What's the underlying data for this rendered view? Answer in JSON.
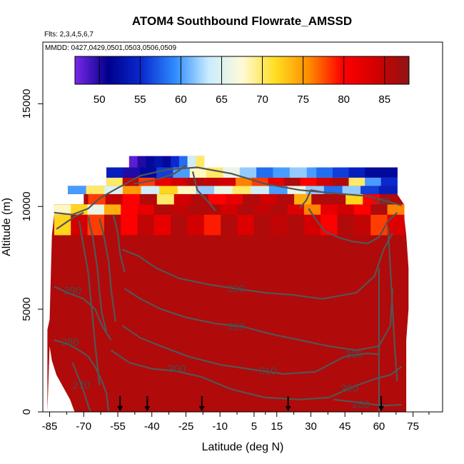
{
  "chart_data": {
    "type": "heatmap",
    "title": "ATOM4 Southbound Flowrate_AMSSD",
    "flights_note": "Flts: 2,3,4,5,6,7",
    "dates_note": "MMDD: 0427,0429,0501,0503,0506,0509",
    "xlabel": "Latitude (deg N)",
    "ylabel": "Altitude (m)",
    "xlim": [
      -88,
      88
    ],
    "ylim": [
      0,
      18000
    ],
    "x_ticks": [
      -85,
      -70,
      -55,
      -40,
      -25,
      -10,
      5,
      15,
      30,
      45,
      60,
      75
    ],
    "y_ticks": [
      0,
      5000,
      10000,
      15000
    ],
    "y_tick_labels": [
      "0",
      "5000",
      "10000",
      "15000"
    ],
    "colorbar": {
      "min": 47,
      "max": 88,
      "ticks": [
        50,
        55,
        60,
        65,
        70,
        75,
        80,
        85
      ],
      "colors": [
        "#7a28e8",
        "#00008c",
        "#0a2ad0",
        "#2e8cff",
        "#c8ecff",
        "#fffad8",
        "#ffde20",
        "#ff8c00",
        "#ff0000",
        "#d40000",
        "#8e1414"
      ]
    },
    "background_value": 86,
    "upper_bands": [
      {
        "x0": -83,
        "x1": 71,
        "y0": 8600,
        "y1": 9600,
        "values": [
          72,
          84,
          78,
          86,
          80,
          85,
          82,
          86,
          84,
          79,
          86,
          83,
          86,
          85,
          86,
          84,
          80,
          86,
          85,
          78,
          83
        ]
      },
      {
        "x0": -83,
        "x1": 71,
        "y0": 9600,
        "y1": 10100,
        "values": [
          68,
          72,
          66,
          74,
          80,
          82,
          86,
          85,
          86,
          86,
          84,
          86,
          85,
          86,
          83,
          76,
          82,
          84,
          80,
          86,
          76
        ]
      },
      {
        "x0": -68,
        "x1": 68,
        "y0": 10100,
        "y1": 10600,
        "values": [
          78,
          85,
          80,
          86,
          70,
          84,
          86,
          80,
          82,
          86,
          84,
          86,
          74,
          86,
          86,
          72,
          80,
          86
        ]
      },
      {
        "x0": -77,
        "x1": 68,
        "y0": 10600,
        "y1": 11000,
        "values": [
          60,
          70,
          65,
          75,
          64,
          72,
          68,
          62,
          66,
          70,
          64,
          60,
          66,
          62,
          58,
          62,
          56,
          54
        ]
      },
      {
        "x0": -60,
        "x1": 68,
        "y0": 11000,
        "y1": 11400,
        "values": [
          70,
          85,
          78,
          82,
          84,
          86,
          85,
          84,
          76,
          78,
          82,
          86,
          80,
          84,
          86,
          70,
          60,
          55
        ]
      },
      {
        "x0": -60,
        "x1": 68,
        "y0": 11400,
        "y1": 11900,
        "values": [
          56,
          52,
          60,
          55,
          62,
          66,
          72,
          64,
          60,
          58,
          62,
          64,
          60,
          58,
          56,
          54,
          52,
          52
        ]
      },
      {
        "x0": -60,
        "x1": 28,
        "y0": 11400,
        "y1": 11900,
        "values": [
          54,
          50,
          52,
          56,
          60,
          68,
          70,
          66,
          62,
          58,
          60,
          62
        ]
      },
      {
        "x0": -50,
        "x1": -17,
        "y0": 11900,
        "y1": 12450,
        "values": [
          48,
          50,
          52,
          53,
          52,
          55,
          58,
          64,
          70
        ]
      }
    ],
    "contour_labels": [
      {
        "text": "340",
        "x": 61,
        "y": 10250
      },
      {
        "text": "330",
        "x": -3,
        "y": 6000
      },
      {
        "text": "320",
        "x": -3,
        "y": 4150
      },
      {
        "text": "310",
        "x": 11,
        "y": 2000
      },
      {
        "text": "300",
        "x": -29,
        "y": 2100
      },
      {
        "text": "300",
        "x": 49,
        "y": 2800
      },
      {
        "text": "290",
        "x": -75,
        "y": 5900
      },
      {
        "text": "290",
        "x": 47,
        "y": 1150
      },
      {
        "text": "280",
        "x": -76,
        "y": 3400
      },
      {
        "text": "280",
        "x": 52,
        "y": 370
      },
      {
        "text": "270",
        "x": -71,
        "y": 1300
      }
    ],
    "contours": [
      [
        [
          -83,
          9700
        ],
        [
          -75,
          9600
        ],
        [
          -68,
          9900
        ],
        [
          -63,
          10400
        ],
        [
          -55,
          10900
        ],
        [
          -45,
          11500
        ],
        [
          -33,
          11800
        ],
        [
          -20,
          11900
        ],
        [
          -5,
          11600
        ],
        [
          10,
          11100
        ],
        [
          25,
          10800
        ],
        [
          35,
          10700
        ],
        [
          45,
          10600
        ],
        [
          55,
          10500
        ],
        [
          62,
          10300
        ],
        [
          70,
          10050
        ]
      ],
      [
        [
          -48,
          11100
        ],
        [
          -38,
          11300
        ],
        [
          -30,
          11600
        ],
        [
          -25,
          12000
        ]
      ],
      [
        [
          -22,
          11700
        ],
        [
          -20,
          10800
        ],
        [
          -15,
          10200
        ],
        [
          -12,
          9800
        ]
      ],
      [
        [
          25,
          9900
        ],
        [
          28,
          10300
        ],
        [
          30,
          10800
        ],
        [
          35,
          10700
        ]
      ],
      [
        [
          -53,
          7900
        ],
        [
          -46,
          7600
        ],
        [
          -38,
          7000
        ],
        [
          -28,
          6500
        ],
        [
          -15,
          6200
        ],
        [
          -3,
          6000
        ],
        [
          10,
          5800
        ],
        [
          22,
          5700
        ],
        [
          35,
          5500
        ],
        [
          50,
          5800
        ],
        [
          58,
          6600
        ],
        [
          62,
          7900
        ],
        [
          66,
          8700
        ]
      ],
      [
        [
          -52,
          6000
        ],
        [
          -45,
          5500
        ],
        [
          -36,
          5000
        ],
        [
          -25,
          4600
        ],
        [
          -12,
          4300
        ],
        [
          0,
          4150
        ],
        [
          12,
          3800
        ],
        [
          25,
          3500
        ],
        [
          38,
          3200
        ],
        [
          50,
          3000
        ],
        [
          60,
          3200
        ],
        [
          65,
          4200
        ],
        [
          66,
          6000
        ]
      ],
      [
        [
          -53,
          4200
        ],
        [
          -45,
          3600
        ],
        [
          -36,
          3200
        ],
        [
          -24,
          2700
        ],
        [
          -10,
          2300
        ],
        [
          5,
          2050
        ],
        [
          18,
          1850
        ],
        [
          32,
          1950
        ],
        [
          45,
          2700
        ],
        [
          55,
          2850
        ],
        [
          60,
          2800
        ]
      ],
      [
        [
          -58,
          3000
        ],
        [
          -50,
          2400
        ],
        [
          -40,
          2100
        ],
        [
          -30,
          2000
        ],
        [
          -18,
          1700
        ],
        [
          -5,
          1100
        ],
        [
          10,
          700
        ],
        [
          25,
          600
        ],
        [
          38,
          700
        ],
        [
          48,
          1200
        ],
        [
          58,
          1600
        ],
        [
          65,
          1800
        ],
        [
          70,
          2200
        ]
      ],
      [
        [
          -83,
          6100
        ],
        [
          -77,
          5800
        ],
        [
          -70,
          5500
        ],
        [
          -65,
          5000
        ],
        [
          -62,
          4200
        ],
        [
          -58,
          3500
        ]
      ],
      [
        [
          -83,
          3500
        ],
        [
          -77,
          3300
        ],
        [
          -72,
          3000
        ],
        [
          -68,
          2700
        ],
        [
          -65,
          2200
        ],
        [
          -62,
          1500
        ],
        [
          -60,
          900
        ],
        [
          -59,
          0
        ]
      ],
      [
        [
          -75,
          2400
        ],
        [
          -72,
          1600
        ],
        [
          -70,
          1000
        ],
        [
          -68,
          300
        ],
        [
          -67,
          0
        ]
      ],
      [
        [
          -72,
          9300
        ],
        [
          -70,
          8000
        ],
        [
          -68,
          6800
        ],
        [
          -67,
          5600
        ],
        [
          -66,
          4500
        ],
        [
          -65,
          3300
        ],
        [
          -64,
          2300
        ],
        [
          -63,
          1300
        ]
      ],
      [
        [
          -68,
          9500
        ],
        [
          -66,
          8500
        ],
        [
          -64,
          7000
        ],
        [
          -63,
          5800
        ],
        [
          -62,
          4800
        ],
        [
          -60,
          3900
        ]
      ],
      [
        [
          -63,
          9400
        ],
        [
          -61,
          8500
        ],
        [
          -59,
          7300
        ],
        [
          -58,
          6000
        ],
        [
          -57,
          5200
        ],
        [
          -56,
          4400
        ]
      ],
      [
        [
          -57,
          9600
        ],
        [
          -55,
          8700
        ],
        [
          -54,
          7700
        ],
        [
          -52,
          6800
        ]
      ],
      [
        [
          29,
          9900
        ],
        [
          32,
          9400
        ],
        [
          36,
          8800
        ],
        [
          42,
          8500
        ],
        [
          48,
          8300
        ],
        [
          55,
          8200
        ],
        [
          60,
          8500
        ],
        [
          64,
          9300
        ],
        [
          68,
          9700
        ]
      ],
      [
        [
          60,
          7000
        ],
        [
          60,
          5000
        ],
        [
          60,
          3000
        ],
        [
          60,
          1000
        ],
        [
          60,
          0
        ]
      ],
      [
        [
          64,
          9000
        ],
        [
          65,
          7000
        ],
        [
          66,
          5000
        ],
        [
          67,
          3000
        ],
        [
          68,
          1500
        ]
      ],
      [
        [
          40,
          600
        ],
        [
          48,
          500
        ],
        [
          55,
          400
        ],
        [
          62,
          300
        ],
        [
          70,
          350
        ]
      ],
      [
        [
          -82,
          8900
        ],
        [
          -78,
          9200
        ],
        [
          -74,
          9500
        ],
        [
          -70,
          9700
        ]
      ]
    ],
    "flight_markers_x": [
      -54,
      -42,
      -18,
      20,
      61
    ]
  }
}
